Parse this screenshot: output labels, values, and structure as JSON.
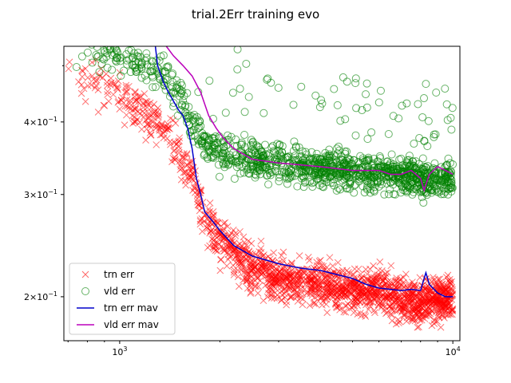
{
  "chart_data": {
    "type": "scatter",
    "title": "trial.2Err training evo",
    "xlabel": "",
    "ylabel": "",
    "xscale": "log",
    "yscale": "log",
    "xlim": [
      680,
      10500
    ],
    "ylim": [
      0.168,
      0.54
    ],
    "x_ticks": [
      {
        "value": 1000,
        "base": "10",
        "exp": "3"
      },
      {
        "value": 10000,
        "base": "10",
        "exp": "4"
      }
    ],
    "y_ticks": [
      {
        "value": 0.2,
        "mantissa": "2",
        "base": "10",
        "exp": "−1"
      },
      {
        "value": 0.3,
        "mantissa": "3",
        "base": "10",
        "exp": "−1"
      },
      {
        "value": 0.4,
        "mantissa": "4",
        "base": "10",
        "exp": "−1"
      }
    ],
    "legend_position": "lower left",
    "series": [
      {
        "name": "trn err",
        "kind": "scatter",
        "marker": "x",
        "color": "#ff0000",
        "trend": [
          [
            690,
            0.5
          ],
          [
            1000,
            0.44
          ],
          [
            1300,
            0.4
          ],
          [
            1500,
            0.36
          ],
          [
            1550,
            0.34
          ],
          [
            1650,
            0.33
          ],
          [
            1780,
            0.27
          ],
          [
            2000,
            0.25
          ],
          [
            2500,
            0.225
          ],
          [
            3000,
            0.215
          ],
          [
            4000,
            0.21
          ],
          [
            5000,
            0.205
          ],
          [
            6000,
            0.205
          ],
          [
            7000,
            0.2
          ],
          [
            8000,
            0.195
          ],
          [
            8300,
            0.2
          ],
          [
            10000,
            0.198
          ]
        ],
        "spread": 0.085
      },
      {
        "name": "vld err",
        "kind": "scatter",
        "marker": "o",
        "color": "#008000",
        "trend": [
          [
            690,
            0.54
          ],
          [
            1000,
            0.52
          ],
          [
            1300,
            0.49
          ],
          [
            1500,
            0.45
          ],
          [
            1650,
            0.4
          ],
          [
            1800,
            0.37
          ],
          [
            2000,
            0.355
          ],
          [
            2500,
            0.345
          ],
          [
            3000,
            0.34
          ],
          [
            4000,
            0.333
          ],
          [
            5000,
            0.33
          ],
          [
            6000,
            0.325
          ],
          [
            7000,
            0.325
          ],
          [
            8000,
            0.32
          ],
          [
            10000,
            0.32
          ]
        ],
        "spread": 0.07
      },
      {
        "name": "trn err mav",
        "kind": "line",
        "color": "#0000cc",
        "points": [
          [
            1280,
            0.54
          ],
          [
            1300,
            0.5
          ],
          [
            1350,
            0.47
          ],
          [
            1400,
            0.45
          ],
          [
            1500,
            0.42
          ],
          [
            1550,
            0.41
          ],
          [
            1600,
            0.39
          ],
          [
            1650,
            0.36
          ],
          [
            1700,
            0.32
          ],
          [
            1750,
            0.3
          ],
          [
            1800,
            0.28
          ],
          [
            1900,
            0.27
          ],
          [
            2000,
            0.26
          ],
          [
            2200,
            0.245
          ],
          [
            2500,
            0.235
          ],
          [
            3000,
            0.228
          ],
          [
            3500,
            0.224
          ],
          [
            4000,
            0.222
          ],
          [
            5000,
            0.215
          ],
          [
            5500,
            0.21
          ],
          [
            6000,
            0.207
          ],
          [
            7000,
            0.205
          ],
          [
            7500,
            0.206
          ],
          [
            8000,
            0.205
          ],
          [
            8200,
            0.215
          ],
          [
            8300,
            0.22
          ],
          [
            8500,
            0.21
          ],
          [
            9000,
            0.203
          ],
          [
            9500,
            0.2
          ],
          [
            10000,
            0.2
          ]
        ]
      },
      {
        "name": "vld err mav",
        "kind": "line",
        "color": "#bb00bb",
        "points": [
          [
            1380,
            0.54
          ],
          [
            1450,
            0.52
          ],
          [
            1550,
            0.5
          ],
          [
            1650,
            0.48
          ],
          [
            1750,
            0.45
          ],
          [
            1850,
            0.41
          ],
          [
            1950,
            0.39
          ],
          [
            2050,
            0.375
          ],
          [
            2200,
            0.36
          ],
          [
            2500,
            0.345
          ],
          [
            3000,
            0.34
          ],
          [
            4000,
            0.335
          ],
          [
            5000,
            0.33
          ],
          [
            6000,
            0.33
          ],
          [
            6500,
            0.325
          ],
          [
            7000,
            0.325
          ],
          [
            7500,
            0.33
          ],
          [
            8000,
            0.32
          ],
          [
            8200,
            0.305
          ],
          [
            8500,
            0.325
          ],
          [
            9000,
            0.335
          ],
          [
            9500,
            0.33
          ],
          [
            10000,
            0.325
          ]
        ]
      }
    ]
  }
}
